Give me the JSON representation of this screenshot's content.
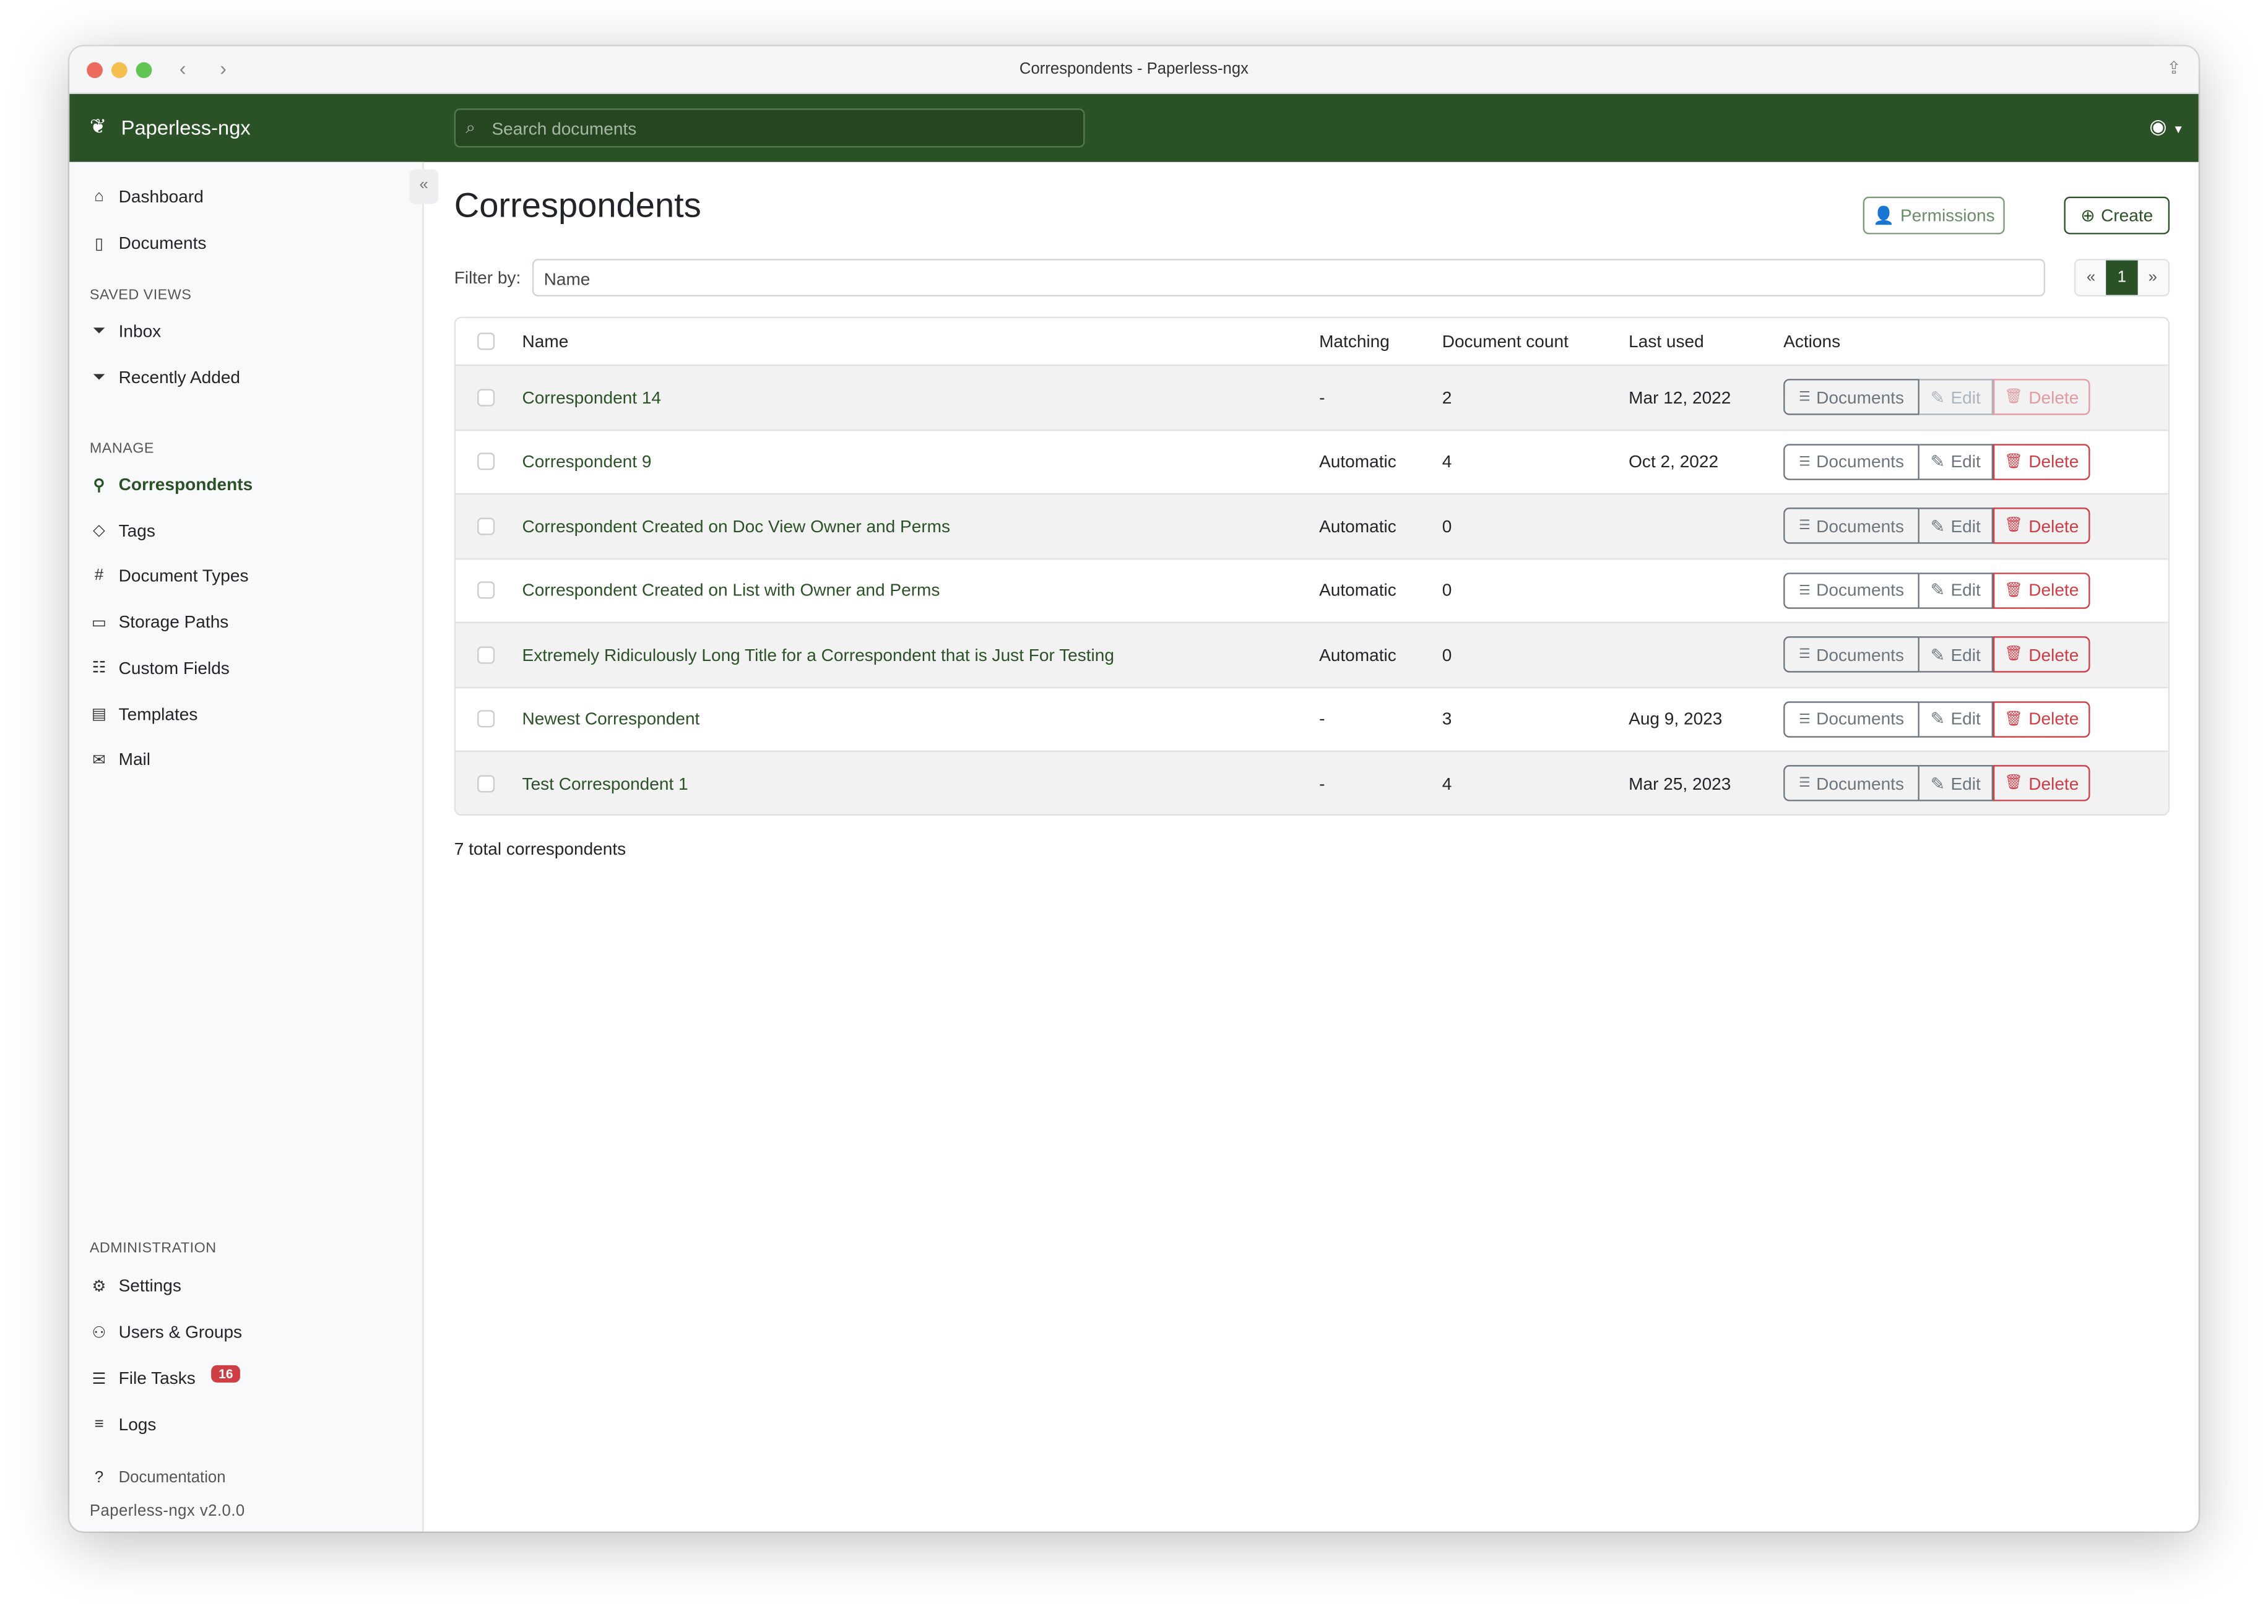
{
  "window": {
    "title": "Correspondents - Paperless-ngx"
  },
  "header": {
    "brand": "Paperless-ngx",
    "search_placeholder": "Search documents"
  },
  "sidebar": {
    "items": [
      {
        "label": "Dashboard",
        "icon": "house-icon"
      },
      {
        "label": "Documents",
        "icon": "files-icon"
      }
    ],
    "saved_views_heading": "SAVED VIEWS",
    "saved_views": [
      {
        "label": "Inbox",
        "icon": "funnel-icon"
      },
      {
        "label": "Recently Added",
        "icon": "funnel-icon"
      }
    ],
    "manage_heading": "MANAGE",
    "manage": [
      {
        "label": "Correspondents",
        "icon": "person-icon",
        "active": true
      },
      {
        "label": "Tags",
        "icon": "tags-icon"
      },
      {
        "label": "Document Types",
        "icon": "hash-icon"
      },
      {
        "label": "Storage Paths",
        "icon": "folder-icon"
      },
      {
        "label": "Custom Fields",
        "icon": "ui-radios-icon"
      },
      {
        "label": "Templates",
        "icon": "file-text-icon"
      },
      {
        "label": "Mail",
        "icon": "envelope-icon"
      }
    ],
    "admin_heading": "ADMINISTRATION",
    "admin": [
      {
        "label": "Settings",
        "icon": "gear-icon"
      },
      {
        "label": "Users & Groups",
        "icon": "people-icon"
      },
      {
        "label": "File Tasks",
        "icon": "list-task-icon",
        "badge": "16"
      },
      {
        "label": "Logs",
        "icon": "text-left-icon"
      }
    ],
    "documentation": "Documentation",
    "version": "Paperless-ngx v2.0.0"
  },
  "main": {
    "title": "Correspondents",
    "permissions_label": "Permissions",
    "create_label": "Create",
    "filter_label": "Filter by:",
    "filter_placeholder": "Name",
    "pager": {
      "prev": "«",
      "current": "1",
      "next": "»"
    },
    "columns": [
      "Name",
      "Matching",
      "Document count",
      "Last used",
      "Actions"
    ],
    "actions": {
      "documents": "Documents",
      "edit": "Edit",
      "delete": "Delete"
    },
    "rows": [
      {
        "name": "Correspondent 14",
        "matching": "-",
        "count": "2",
        "last_used": "Mar 12, 2022",
        "disabled": true
      },
      {
        "name": "Correspondent 9",
        "matching": "Automatic",
        "count": "4",
        "last_used": "Oct 2, 2022"
      },
      {
        "name": "Correspondent Created on Doc View Owner and Perms",
        "matching": "Automatic",
        "count": "0",
        "last_used": ""
      },
      {
        "name": "Correspondent Created on List with Owner and Perms",
        "matching": "Automatic",
        "count": "0",
        "last_used": ""
      },
      {
        "name": "Extremely Ridiculously Long Title for a Correspondent that is Just For Testing",
        "matching": "Automatic",
        "count": "0",
        "last_used": ""
      },
      {
        "name": "Newest Correspondent",
        "matching": "-",
        "count": "3",
        "last_used": "Aug 9, 2023"
      },
      {
        "name": "Test Correspondent 1",
        "matching": "-",
        "count": "4",
        "last_used": "Mar 25, 2023"
      }
    ],
    "total": "7 total correspondents"
  },
  "colors": {
    "brand": "#2b5226",
    "danger": "#cf3d45"
  }
}
